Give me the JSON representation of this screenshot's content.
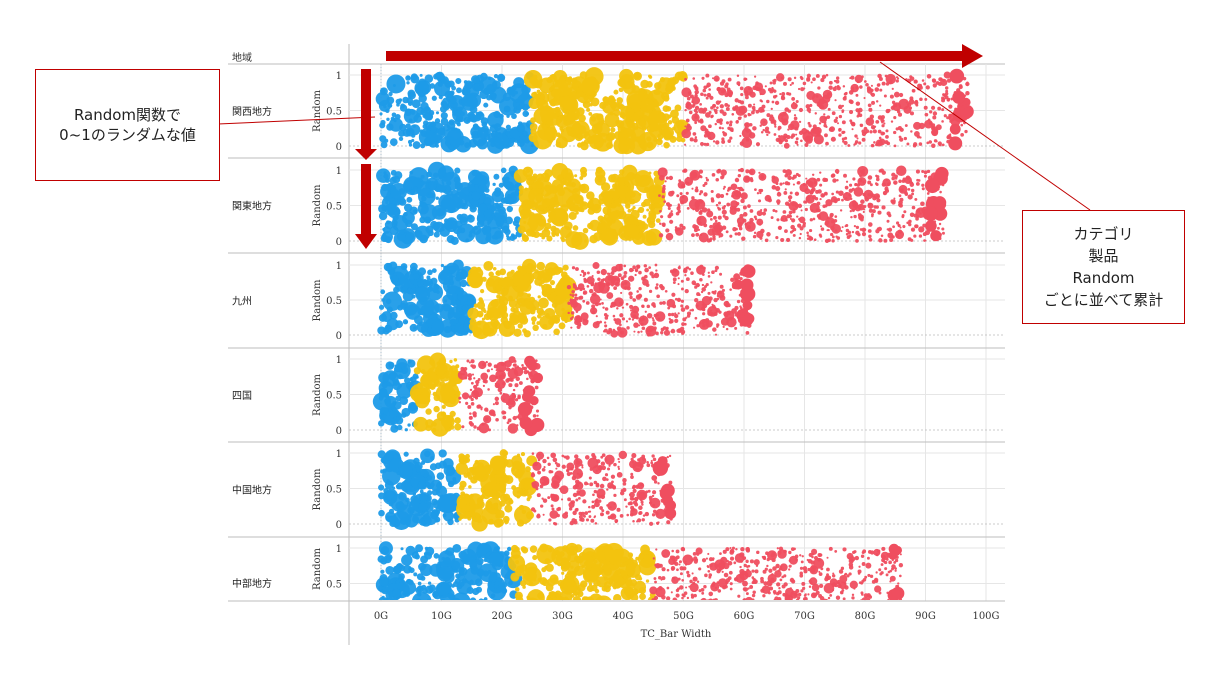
{
  "colors": {
    "blue": "#1e9be8",
    "yellow": "#f2c30f",
    "red": "#ef4e5f",
    "arrow": "#c00000",
    "grid": "#e6e6e6",
    "axis": "#bdbdbd"
  },
  "chart_data": {
    "type": "scatter",
    "row_header": "地域",
    "xlabel": "TC_Bar Width",
    "ylabel": "Random",
    "xlim": [
      0,
      100
    ],
    "x_ticks": [
      "0G",
      "10G",
      "20G",
      "30G",
      "40G",
      "50G",
      "60G",
      "70G",
      "80G",
      "90G",
      "100G"
    ],
    "ylim": [
      0,
      1
    ],
    "y_ticks": [
      "0",
      "0.5",
      "1"
    ],
    "grid": true,
    "categories": [
      "関西地方",
      "関東地方",
      "九州",
      "四国",
      "中国地方",
      "中部地方"
    ],
    "series_segments": [
      {
        "region": "関西地方",
        "blue_end": 25,
        "yellow_end": 50,
        "red_end": 97
      },
      {
        "region": "関東地方",
        "blue_end": 23,
        "yellow_end": 46,
        "red_end": 93
      },
      {
        "region": "九州",
        "blue_end": 15,
        "yellow_end": 31,
        "red_end": 61
      },
      {
        "region": "四国",
        "blue_end": 6,
        "yellow_end": 13,
        "red_end": 26
      },
      {
        "region": "中国地方",
        "blue_end": 13,
        "yellow_end": 25,
        "red_end": 48
      },
      {
        "region": "中部地方",
        "blue_end": 22,
        "yellow_end": 45,
        "red_end": 86
      }
    ]
  },
  "annotations": {
    "left_callout": [
      "Random関数で",
      "0~1のランダムな値"
    ],
    "right_callout": [
      "カテゴリ",
      "製品",
      "Random",
      "ごとに並べて累計"
    ]
  }
}
